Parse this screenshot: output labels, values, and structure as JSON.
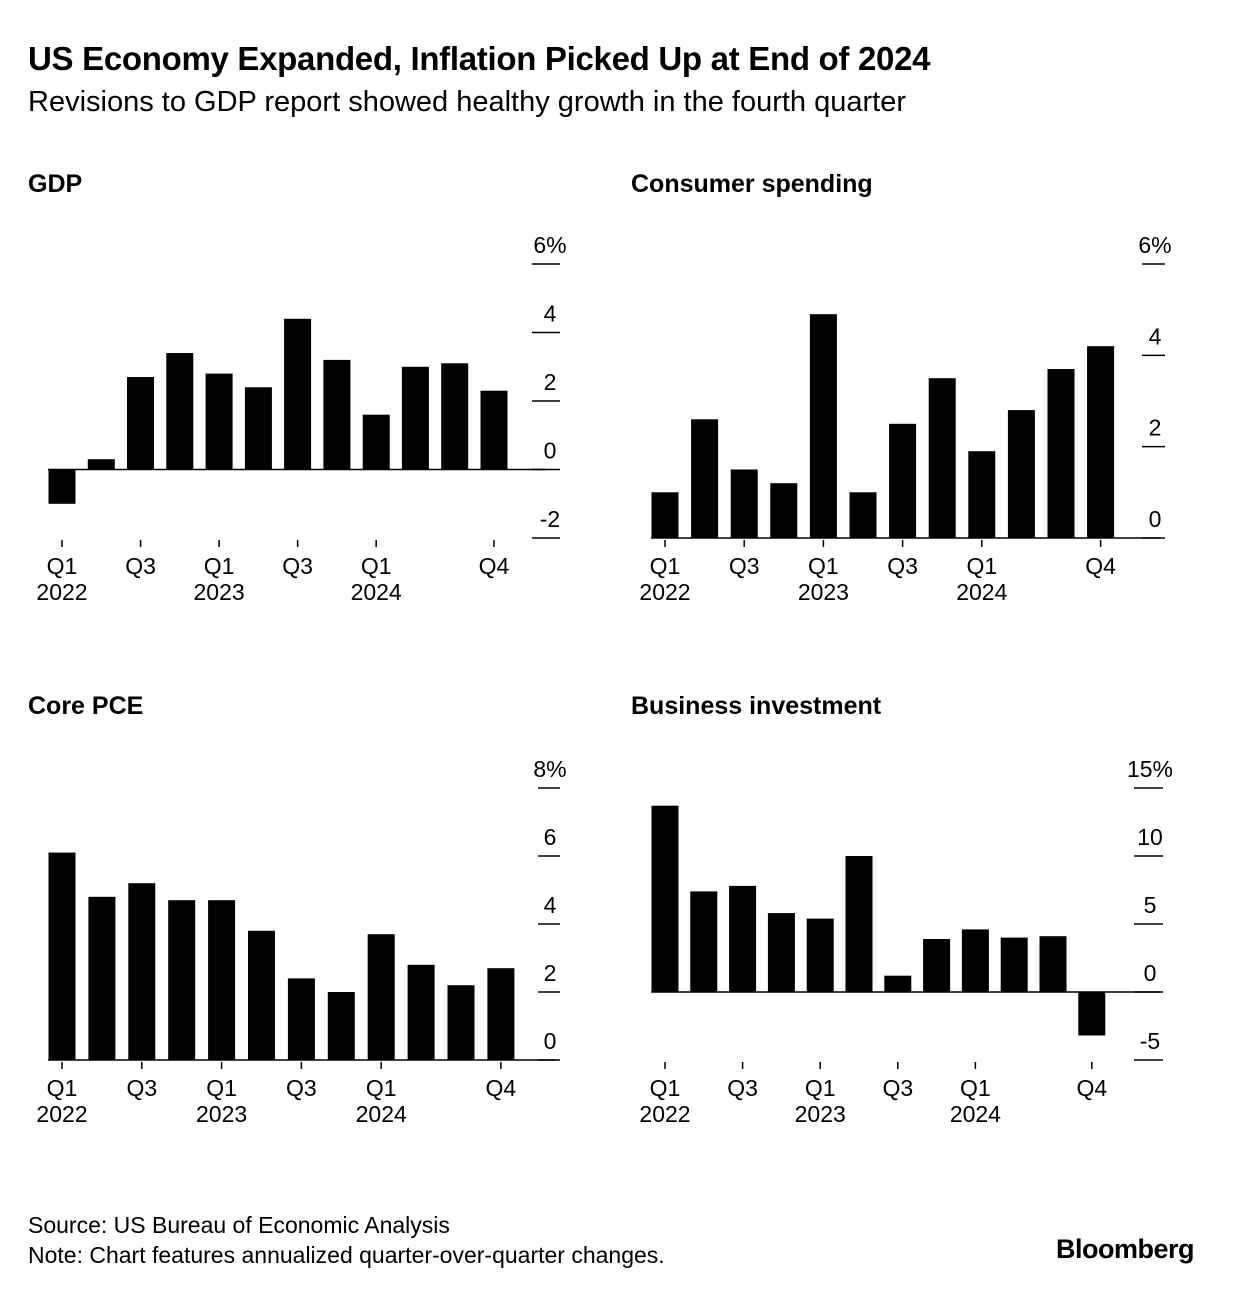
{
  "title": "US Economy Expanded, Inflation Picked Up at End of 2024",
  "subtitle": "Revisions to GDP report showed healthy growth in the fourth quarter",
  "footer": {
    "source": "Source: US Bureau of Economic Analysis",
    "note": "Note: Chart features annualized quarter-over-quarter changes."
  },
  "brand": "Bloomberg",
  "colors": {
    "bar": "#000000",
    "background": "#ffffff"
  },
  "chart_data": [
    {
      "type": "bar",
      "title": "GDP",
      "categories": [
        "Q1 2022",
        "Q2 2022",
        "Q3 2022",
        "Q4 2022",
        "Q1 2023",
        "Q2 2023",
        "Q3 2023",
        "Q4 2023",
        "Q1 2024",
        "Q2 2024",
        "Q3 2024",
        "Q4 2024"
      ],
      "values": [
        -1.0,
        0.3,
        2.7,
        3.4,
        2.8,
        2.4,
        4.4,
        3.2,
        1.6,
        3.0,
        3.1,
        2.3
      ],
      "ylim": [
        -2,
        6
      ],
      "y_ticks": [
        6,
        4,
        2,
        0,
        -2
      ],
      "y_tick_labels": [
        "6%",
        "4",
        "2",
        "0",
        "-2"
      ],
      "x_tick_labels": [
        {
          "index": 0,
          "quarter": "Q1",
          "year": "2022"
        },
        {
          "index": 2,
          "quarter": "Q3",
          "year": ""
        },
        {
          "index": 4,
          "quarter": "Q1",
          "year": "2023"
        },
        {
          "index": 6,
          "quarter": "Q3",
          "year": ""
        },
        {
          "index": 8,
          "quarter": "Q1",
          "year": "2024"
        },
        {
          "index": 11,
          "quarter": "Q4",
          "year": ""
        }
      ],
      "baseline": 0
    },
    {
      "type": "bar",
      "title": "Consumer spending",
      "categories": [
        "Q1 2022",
        "Q2 2022",
        "Q3 2022",
        "Q4 2022",
        "Q1 2023",
        "Q2 2023",
        "Q3 2023",
        "Q4 2023",
        "Q1 2024",
        "Q2 2024",
        "Q3 2024",
        "Q4 2024"
      ],
      "values": [
        1.0,
        2.6,
        1.5,
        1.2,
        4.9,
        1.0,
        2.5,
        3.5,
        1.9,
        2.8,
        3.7,
        4.2
      ],
      "ylim": [
        0,
        6
      ],
      "y_ticks": [
        6,
        4,
        2,
        0
      ],
      "y_tick_labels": [
        "6%",
        "4",
        "2",
        "0"
      ],
      "x_tick_labels": [
        {
          "index": 0,
          "quarter": "Q1",
          "year": "2022"
        },
        {
          "index": 2,
          "quarter": "Q3",
          "year": ""
        },
        {
          "index": 4,
          "quarter": "Q1",
          "year": "2023"
        },
        {
          "index": 6,
          "quarter": "Q3",
          "year": ""
        },
        {
          "index": 8,
          "quarter": "Q1",
          "year": "2024"
        },
        {
          "index": 11,
          "quarter": "Q4",
          "year": ""
        }
      ],
      "baseline": 0
    },
    {
      "type": "bar",
      "title": "Core PCE",
      "categories": [
        "Q1 2022",
        "Q2 2022",
        "Q3 2022",
        "Q4 2022",
        "Q1 2023",
        "Q2 2023",
        "Q3 2023",
        "Q4 2023",
        "Q1 2024",
        "Q2 2024",
        "Q3 2024",
        "Q4 2024"
      ],
      "values": [
        6.1,
        4.8,
        5.2,
        4.7,
        4.7,
        3.8,
        2.4,
        2.0,
        3.7,
        2.8,
        2.2,
        2.7
      ],
      "ylim": [
        0,
        8
      ],
      "y_ticks": [
        8,
        6,
        4,
        2,
        0
      ],
      "y_tick_labels": [
        "8%",
        "6",
        "4",
        "2",
        "0"
      ],
      "x_tick_labels": [
        {
          "index": 0,
          "quarter": "Q1",
          "year": "2022"
        },
        {
          "index": 2,
          "quarter": "Q3",
          "year": ""
        },
        {
          "index": 4,
          "quarter": "Q1",
          "year": "2023"
        },
        {
          "index": 6,
          "quarter": "Q3",
          "year": ""
        },
        {
          "index": 8,
          "quarter": "Q1",
          "year": "2024"
        },
        {
          "index": 11,
          "quarter": "Q4",
          "year": ""
        }
      ],
      "baseline": 0
    },
    {
      "type": "bar",
      "title": "Business investment",
      "categories": [
        "Q1 2022",
        "Q2 2022",
        "Q3 2022",
        "Q4 2022",
        "Q1 2023",
        "Q2 2023",
        "Q3 2023",
        "Q4 2023",
        "Q1 2024",
        "Q2 2024",
        "Q3 2024",
        "Q4 2024"
      ],
      "values": [
        13.7,
        7.4,
        7.8,
        5.8,
        5.4,
        10.0,
        1.2,
        3.9,
        4.6,
        4.0,
        4.1,
        -3.2
      ],
      "ylim": [
        -5,
        15
      ],
      "y_ticks": [
        15,
        10,
        5,
        0,
        -5
      ],
      "y_tick_labels": [
        "15%",
        "10",
        "5",
        "0",
        "-5"
      ],
      "x_tick_labels": [
        {
          "index": 0,
          "quarter": "Q1",
          "year": "2022"
        },
        {
          "index": 2,
          "quarter": "Q3",
          "year": ""
        },
        {
          "index": 4,
          "quarter": "Q1",
          "year": "2023"
        },
        {
          "index": 6,
          "quarter": "Q3",
          "year": ""
        },
        {
          "index": 8,
          "quarter": "Q1",
          "year": "2024"
        },
        {
          "index": 11,
          "quarter": "Q4",
          "year": ""
        }
      ],
      "baseline": 0
    }
  ]
}
